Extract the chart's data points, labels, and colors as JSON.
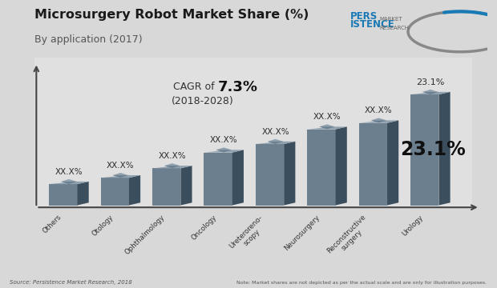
{
  "title_line1": "Microsurgery Robot Market Share (%)",
  "title_line2": "By application (2017)",
  "categories": [
    "Others",
    "Otology",
    "Ophthalmology",
    "Oncology",
    "Ureteroreno-\nscopy",
    "Neurosurgery",
    "Reconstructive\nsurgery",
    "Urology"
  ],
  "values": [
    2,
    2.6,
    3.5,
    5.0,
    5.8,
    7.2,
    7.8,
    10.5
  ],
  "bar_labels": [
    "XX.X%",
    "XX.X%",
    "XX.X%",
    "XX.X%",
    "XX.X%",
    "XX.X%",
    "XX.X%",
    "23.1%"
  ],
  "bar_face_color": "#6b7f8f",
  "bar_right_color": "#3a4e5e",
  "bar_top_color": "#8fa0ae",
  "cagr_normal": "CAGR of ",
  "cagr_bold": "7.3%",
  "cagr_period": "(2018-2028)",
  "urology_value": "23.1%",
  "source_text": "Source: Persistence Market Research, 2018",
  "note_text": "Note: Market shares are not depicted as per the actual scale and are only for illustration purposes.",
  "bg_color": "#e8e8e8",
  "title_color": "#1a1a1a",
  "bar_label_color": "#2c2c2c",
  "logo_text1": "PERS",
  "logo_text2": "ISTENCE",
  "logo_sub1": "MARKET",
  "logo_sub2": "RESEARCH",
  "logo_color": "#1a7ab5",
  "logo_gray": "#888888"
}
